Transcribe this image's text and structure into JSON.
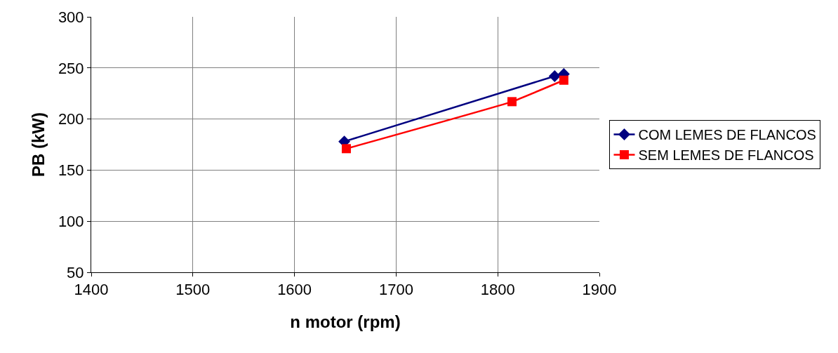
{
  "chart_data": {
    "type": "line",
    "xlabel": "n motor (rpm)",
    "ylabel": "PB (kW)",
    "xlim": [
      1400,
      1900
    ],
    "xticks": [
      1400,
      1500,
      1600,
      1700,
      1800,
      1900
    ],
    "ylim": [
      50,
      300
    ],
    "yticks": [
      50,
      100,
      150,
      200,
      250,
      300
    ],
    "grid": true,
    "legend": "right",
    "series": [
      {
        "name": "COM LEMES DE FLANCOS",
        "color": "#000080",
        "marker": "diamond",
        "x": [
          1649,
          1856,
          1865
        ],
        "values": [
          178,
          242,
          244
        ]
      },
      {
        "name": "SEM LEMES DE FLANCOS",
        "color": "#ff0000",
        "marker": "square",
        "x": [
          1651,
          1814,
          1865
        ],
        "values": [
          171,
          217,
          238
        ]
      }
    ]
  }
}
